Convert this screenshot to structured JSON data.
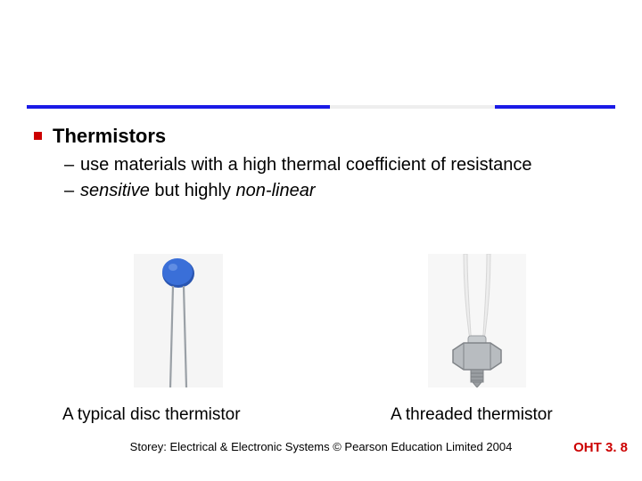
{
  "rule": {
    "color": "#1a1ae6",
    "accent_color": "#eeeeee"
  },
  "bullet": {
    "marker_color": "#cc0000",
    "heading": "Thermistors",
    "subs": [
      {
        "dash": "–",
        "text_html": "use materials with a high thermal coefficient of resistance"
      },
      {
        "dash": "–",
        "text_html": "<span class='em'>sensitive</span> but highly <span class='em'>non-linear</span>"
      }
    ]
  },
  "figures": {
    "left": {
      "caption": "A typical disc thermistor",
      "disc_color": "#3a6fd8",
      "disc_shadow": "#2a55b0",
      "lead_color": "#9aa0a6",
      "bg": "#f5f5f5"
    },
    "right": {
      "caption": "A threaded thermistor",
      "nut_fill": "#b8bcc0",
      "nut_edge": "#808488",
      "cable_color": "#ededed",
      "cable_edge": "#d6d6d6",
      "tip_color": "#9a9ea2",
      "bg": "#f7f7f7"
    }
  },
  "footer": {
    "credit": "Storey: Electrical & Electronic Systems © Pearson Education Limited 2004",
    "slide_number": "OHT 3. 8",
    "slide_number_color": "#cc0000"
  }
}
